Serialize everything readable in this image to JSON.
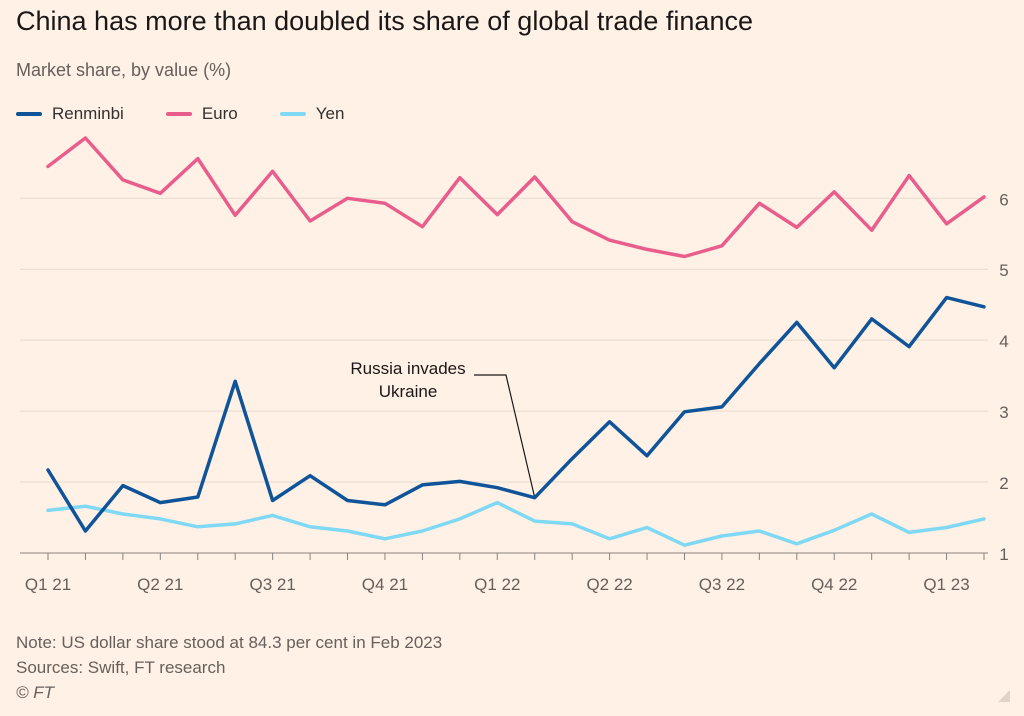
{
  "title": "China has more than doubled its share of global trade finance",
  "subtitle": "Market share, by value (%)",
  "legend": [
    {
      "name": "Renminbi",
      "color": "#0F5499"
    },
    {
      "name": "Euro",
      "color": "#E95D8C"
    },
    {
      "name": "Yen",
      "color": "#7FD8F4"
    }
  ],
  "notes": {
    "note": "Note: US dollar share stood at 84.3 per cent in Feb 2023",
    "sources": "Sources: Swift, FT research",
    "copyright": "© FT"
  },
  "chart_data": {
    "type": "line",
    "title": "China has more than doubled its share of global trade finance",
    "subtitle": "Market share, by value (%)",
    "x_tick_labels": [
      "Q1 21",
      "Q2 21",
      "Q3 21",
      "Q4 21",
      "Q1 22",
      "Q2 22",
      "Q3 22",
      "Q4 22",
      "Q1 23"
    ],
    "x_tick_positions": [
      0,
      3,
      6,
      9,
      12,
      15,
      18,
      21,
      24
    ],
    "y_ticks": [
      1,
      2,
      3,
      4,
      5,
      6
    ],
    "ylim": [
      1,
      6.85
    ],
    "y_axis_side": "right",
    "grid": true,
    "legend_placement": "top-left",
    "annotation": {
      "text": [
        "Russia invades",
        "Ukraine"
      ],
      "point_index": 13
    },
    "series": [
      {
        "name": "Renminbi",
        "color": "#0F5499",
        "values": [
          2.17,
          1.31,
          1.95,
          1.71,
          1.79,
          3.42,
          1.74,
          2.09,
          1.74,
          1.68,
          1.96,
          2.01,
          1.92,
          1.78,
          2.33,
          2.85,
          2.37,
          2.99,
          3.06,
          3.67,
          4.25,
          3.61,
          4.3,
          3.91,
          4.6,
          4.47
        ]
      },
      {
        "name": "Euro",
        "color": "#E95D8C",
        "values": [
          6.45,
          6.85,
          6.26,
          6.07,
          6.56,
          5.76,
          6.38,
          5.68,
          6.0,
          5.93,
          5.6,
          6.29,
          5.77,
          6.3,
          5.67,
          5.41,
          5.28,
          5.18,
          5.33,
          5.93,
          5.59,
          6.09,
          5.55,
          6.32,
          5.64,
          6.02
        ]
      },
      {
        "name": "Yen",
        "color": "#7FD8F4",
        "values": [
          1.6,
          1.66,
          1.55,
          1.48,
          1.37,
          1.41,
          1.53,
          1.37,
          1.31,
          1.2,
          1.31,
          1.48,
          1.71,
          1.45,
          1.41,
          1.2,
          1.36,
          1.11,
          1.24,
          1.31,
          1.13,
          1.32,
          1.55,
          1.29,
          1.36,
          1.48
        ]
      }
    ]
  }
}
